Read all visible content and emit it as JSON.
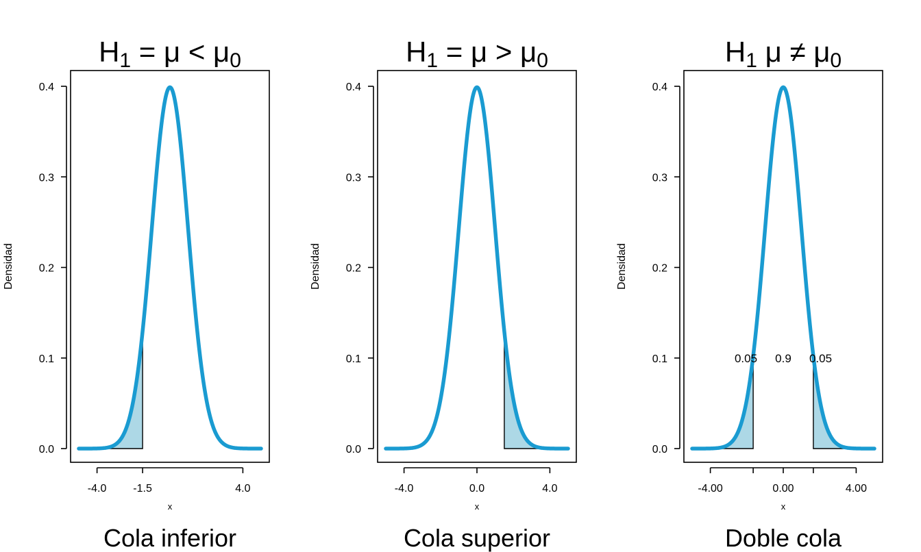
{
  "colors": {
    "curve": "#1a9bd1",
    "tail_fill": "#add8e6",
    "axis": "#000000"
  },
  "chart_data": [
    {
      "type": "area",
      "title": {
        "main": "H",
        "sub": "1",
        "rest": " = μ < μ",
        "sub2": "0"
      },
      "subtitle": "Cola inferior",
      "xlabel": "x",
      "ylabel": "Densidad",
      "x_ticks": [
        -4.0,
        -1.5,
        4.0
      ],
      "x_tick_labels": [
        "-4.0",
        "-1.5",
        "4.0"
      ],
      "y_ticks": [
        0.0,
        0.1,
        0.2,
        0.3,
        0.4
      ],
      "y_tick_labels": [
        "0.0",
        "0.1",
        "0.2",
        "0.3",
        "0.4"
      ],
      "xlim": [
        -5,
        5
      ],
      "ylim": [
        0,
        0.4
      ],
      "series": [
        {
          "distribution": "normal",
          "mean": 0,
          "sd": 1,
          "x_range": [
            -5,
            5
          ]
        }
      ],
      "shaded_regions": [
        {
          "from": -5,
          "to": -1.5
        }
      ],
      "annotations": []
    },
    {
      "type": "area",
      "title": {
        "main": "H",
        "sub": "1",
        "rest": " = μ > μ",
        "sub2": "0"
      },
      "subtitle": "Cola superior",
      "xlabel": "x",
      "ylabel": "Densidad",
      "x_ticks": [
        -4.0,
        0.0,
        4.0
      ],
      "x_tick_labels": [
        "-4.0",
        "0.0",
        "4.0"
      ],
      "y_ticks": [
        0.0,
        0.1,
        0.2,
        0.3,
        0.4
      ],
      "y_tick_labels": [
        "0.0",
        "0.1",
        "0.2",
        "0.3",
        "0.4"
      ],
      "xlim": [
        -5,
        5
      ],
      "ylim": [
        0,
        0.4
      ],
      "series": [
        {
          "distribution": "normal",
          "mean": 0,
          "sd": 1,
          "x_range": [
            -5,
            5
          ]
        }
      ],
      "shaded_regions": [
        {
          "from": 1.5,
          "to": 5
        }
      ],
      "annotations": []
    },
    {
      "type": "area",
      "title": {
        "main": "H",
        "sub": "1",
        "rest": " μ ≠ μ",
        "sub2": "0"
      },
      "subtitle": "Doble cola",
      "xlabel": "x",
      "ylabel": "Densidad",
      "x_ticks": [
        -4.0,
        -1.65,
        0.0,
        1.65,
        4.0
      ],
      "x_tick_labels": [
        "-4.00",
        "",
        "0.00",
        "",
        "4.00"
      ],
      "y_ticks": [
        0.0,
        0.1,
        0.2,
        0.3,
        0.4
      ],
      "y_tick_labels": [
        "0.0",
        "0.1",
        "0.2",
        "0.3",
        "0.4"
      ],
      "xlim": [
        -5,
        5
      ],
      "ylim": [
        0,
        0.4
      ],
      "series": [
        {
          "distribution": "normal",
          "mean": 0,
          "sd": 1,
          "x_range": [
            -5,
            5
          ]
        }
      ],
      "shaded_regions": [
        {
          "from": -5,
          "to": -1.65
        },
        {
          "from": 1.65,
          "to": 5
        }
      ],
      "annotations": [
        {
          "text": "0.05",
          "x": -2.5,
          "y": 0.1
        },
        {
          "text": "0.9",
          "x": 0.0,
          "y": 0.1
        },
        {
          "text": "0.05",
          "x": 2.5,
          "y": 0.1
        }
      ]
    }
  ]
}
